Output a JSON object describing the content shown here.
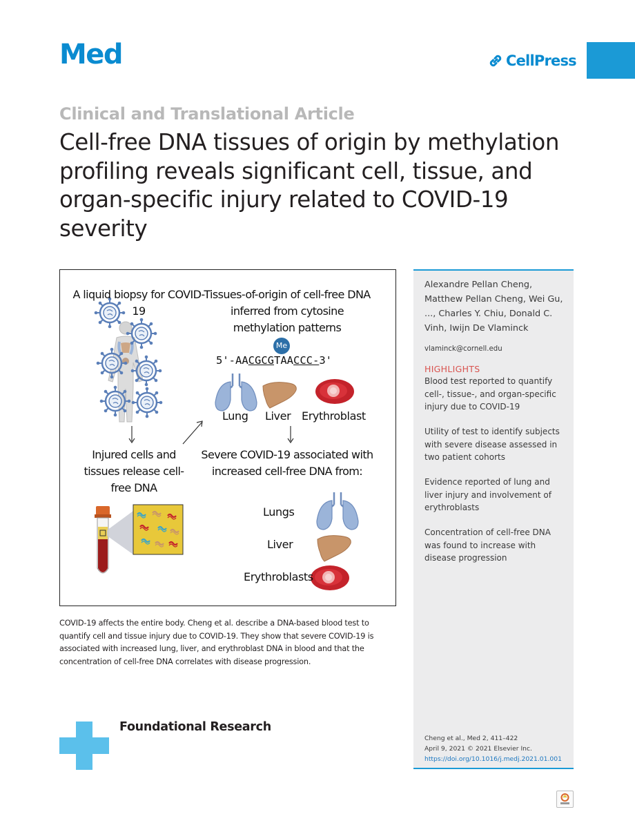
{
  "header": {
    "journal": "Med",
    "publisher": "CellPress"
  },
  "article": {
    "type": "Clinical and Translational Article",
    "title": "Cell-free DNA tissues of origin by methylation profiling reveals significant cell, tissue, and organ-specific injury related to COVID-19 severity"
  },
  "graphical_abstract": {
    "liquid_biopsy": "A liquid biopsy for COVID-19",
    "tissues_of_origin": "Tissues-of-origin of cell-free DNA inferred from cytosine methylation patterns",
    "methyl_badge": "Me",
    "sequence": {
      "prefix": "5'-AA",
      "cg1": "CGCG",
      "mid": "TAA",
      "cg2": "CCC-",
      "suffix": "3'"
    },
    "organs_top": [
      "Lung",
      "Liver",
      "Erythroblast"
    ],
    "injured_cells": "Injured cells and tissues release cell-free DNA",
    "severe_association": "Severe COVID-19 associated with increased cell-free DNA from:",
    "organs_bottom": [
      "Lungs",
      "Liver",
      "Erythroblasts"
    ],
    "colors": {
      "virus": "#5b7fb8",
      "body": "#d8d8d8",
      "lung": "#9bb4d9",
      "liver": "#c8956a",
      "erythroblast": "#c4232b",
      "tube_blood": "#9b1c1c",
      "tube_cap": "#d9672a",
      "zoom_box": "#e8c83a"
    }
  },
  "caption": "COVID-19 affects the entire body. Cheng et al. describe a DNA-based blood test to quantify cell and tissue injury due to COVID-19. They show that severe COVID-19 is associated with increased lung, liver, and erythroblast DNA in blood and that the concentration of cell-free DNA correlates with disease progression.",
  "sidebar": {
    "authors": "Alexandre Pellan Cheng, Matthew Pellan Cheng, Wei Gu, ..., Charles Y. Chiu, Donald C. Vinh, Iwijn De Vlaminck",
    "email": "vlaminck@cornell.edu",
    "highlights_heading": "HIGHLIGHTS",
    "highlights": [
      "Blood test reported to quantify cell-, tissue-, and organ-specific injury due to COVID-19",
      "Utility of test to identify subjects with severe disease assessed in two patient cohorts",
      "Evidence reported of lung and liver injury and involvement of erythroblasts",
      "Concentration of cell-free DNA was found to increase with disease progression"
    ],
    "citation": {
      "line1": "Cheng et al., Med 2, 411–422",
      "line2": "April 9, 2021 © 2021 Elsevier Inc.",
      "doi": "https://doi.org/10.1016/j.medj.2021.01.001"
    }
  },
  "footer": {
    "category": "Foundational Research",
    "accent_color": "#5bc0eb"
  }
}
